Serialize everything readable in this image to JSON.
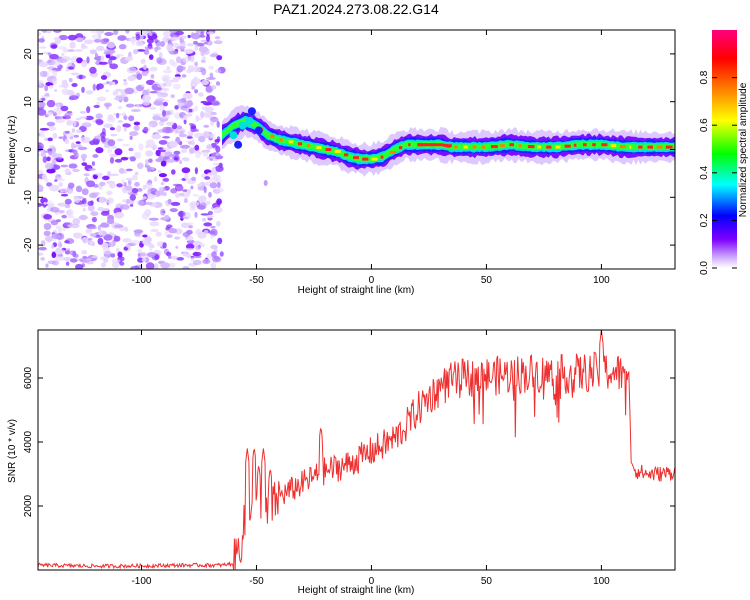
{
  "title": "PAZ1.2024.273.08.22.G14",
  "chart_data": [
    {
      "type": "heatmap",
      "xlabel": "Height of straight line (km)",
      "ylabel": "Frequency (Hz)",
      "xlim": [
        -145,
        132
      ],
      "ylim": [
        -25,
        25
      ],
      "xticks": [
        -100,
        -50,
        0,
        50,
        100
      ],
      "xtick_labels": [
        "-100",
        "-50",
        "0",
        "50",
        "100"
      ],
      "yticks": [
        20,
        10,
        0,
        -10,
        -20
      ],
      "ytick_labels": [
        "20",
        "10",
        "0",
        "-10",
        "-20"
      ],
      "colorbar": {
        "label": "Normalized spectral amplitude",
        "range": [
          0,
          1
        ],
        "ticks": [
          0.0,
          0.2,
          0.4,
          0.6,
          0.8
        ],
        "tick_labels": [
          "0.0",
          "0.2",
          "0.4",
          "0.6",
          "0.8"
        ],
        "colors": [
          "#ffffff",
          "#c8a0ff",
          "#7f00ff",
          "#0000ff",
          "#00ffff",
          "#00ff00",
          "#ffff00",
          "#ff8000",
          "#ff0000",
          "#ff0080"
        ]
      },
      "noise_region_x": [
        -145,
        -65
      ],
      "ridge": {
        "x": [
          -65,
          -60,
          -55,
          -50,
          -45,
          -40,
          -35,
          -30,
          -25,
          -20,
          -15,
          -10,
          -5,
          0,
          5,
          10,
          15,
          20,
          25,
          30,
          35,
          40,
          50,
          60,
          70,
          80,
          90,
          100,
          110,
          120,
          132
        ],
        "y": [
          3,
          5,
          6,
          5,
          3,
          2,
          1.5,
          1,
          0.5,
          0,
          -0.5,
          -1.5,
          -2,
          -2,
          -1.5,
          0,
          1,
          1,
          1,
          1,
          0.5,
          0.5,
          0.5,
          1,
          0.5,
          0.5,
          1,
          1,
          0.5,
          0.5,
          0.5
        ]
      }
    },
    {
      "type": "line",
      "xlabel": "Height of straight line (km)",
      "ylabel": "SNR (10 * v/v)",
      "xlim": [
        -145,
        132
      ],
      "ylim": [
        0,
        7500
      ],
      "xticks": [
        -100,
        -50,
        0,
        50,
        100
      ],
      "xtick_labels": [
        "-100",
        "-50",
        "0",
        "50",
        "100"
      ],
      "yticks": [
        2000,
        4000,
        6000
      ],
      "ytick_labels": [
        "2000",
        "4000",
        "6000"
      ],
      "color": "#ee3030",
      "envelope": {
        "x": [
          -145,
          -120,
          -100,
          -80,
          -65,
          -60,
          -57,
          -55,
          -52,
          -50,
          -48,
          -45,
          -42,
          -40,
          -35,
          -30,
          -25,
          -20,
          -10,
          0,
          10,
          15,
          20,
          25,
          30,
          35,
          40,
          50,
          60,
          70,
          80,
          90,
          100,
          105,
          110,
          112,
          113,
          115,
          120,
          125,
          132
        ],
        "y": [
          150,
          120,
          130,
          150,
          150,
          200,
          800,
          1500,
          2300,
          2000,
          1400,
          1700,
          2100,
          2300,
          2500,
          2700,
          2900,
          3100,
          3300,
          3700,
          4100,
          4500,
          5000,
          5400,
          5700,
          5900,
          6000,
          6050,
          6100,
          6150,
          6100,
          6150,
          6200,
          6200,
          6100,
          6000,
          3400,
          3100,
          3000,
          3000,
          3050
        ]
      },
      "spikes": [
        {
          "x": -54,
          "y": 3800
        },
        {
          "x": -51,
          "y": 3850
        },
        {
          "x": -49,
          "y": 3300
        },
        {
          "x": -47,
          "y": 3800
        },
        {
          "x": -44,
          "y": 3200
        },
        {
          "x": -22,
          "y": 4500
        },
        {
          "x": 16,
          "y": 4900
        },
        {
          "x": 100,
          "y": 7500
        }
      ]
    }
  ]
}
